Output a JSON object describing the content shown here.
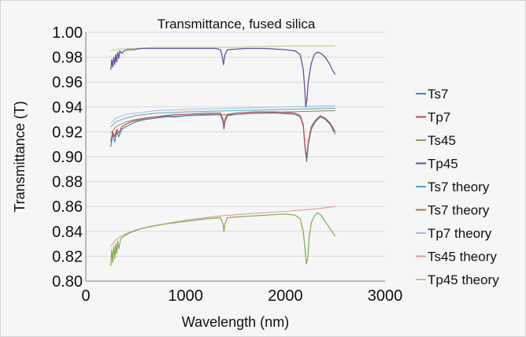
{
  "chart_data": {
    "type": "line",
    "title": "Transmittance, fused silica",
    "xlabel": "Wavelength (nm)",
    "ylabel": "Transmittance (T)",
    "xlim": [
      0,
      3000
    ],
    "ylim": [
      0.8,
      1.0
    ],
    "xticks": [
      "0",
      "1000",
      "2000",
      "3000"
    ],
    "xtick_values": [
      0,
      1000,
      2000,
      3000
    ],
    "yticks": [
      "0.80",
      "0.82",
      "0.84",
      "0.86",
      "0.88",
      "0.90",
      "0.92",
      "0.94",
      "0.96",
      "0.98",
      "1.00"
    ],
    "ytick_values": [
      0.8,
      0.82,
      0.84,
      0.86,
      0.88,
      0.9,
      0.92,
      0.94,
      0.96,
      0.98,
      1.0
    ],
    "grid": "horizontal",
    "legend_position": "right",
    "series": [
      {
        "name": "Ts7",
        "color": "#4a7ebb",
        "width": 1.2,
        "x": [
          250,
          270,
          290,
          310,
          330,
          360,
          400,
          450,
          500,
          600,
          700,
          800,
          900,
          1000,
          1200,
          1350,
          1375,
          1385,
          1395,
          1420,
          1500,
          1700,
          1900,
          2100,
          2150,
          2180,
          2200,
          2215,
          2230,
          2260,
          2300,
          2350,
          2400,
          2450,
          2500
        ],
        "y": [
          0.908,
          0.918,
          0.912,
          0.92,
          0.916,
          0.922,
          0.924,
          0.926,
          0.928,
          0.93,
          0.931,
          0.932,
          0.932,
          0.933,
          0.934,
          0.934,
          0.928,
          0.922,
          0.928,
          0.933,
          0.934,
          0.935,
          0.935,
          0.934,
          0.932,
          0.925,
          0.905,
          0.896,
          0.91,
          0.922,
          0.928,
          0.932,
          0.93,
          0.926,
          0.918
        ]
      },
      {
        "name": "Tp7",
        "color": "#be4b48",
        "width": 1.2,
        "x": [
          250,
          270,
          290,
          310,
          330,
          360,
          400,
          450,
          500,
          600,
          700,
          800,
          900,
          1000,
          1200,
          1350,
          1375,
          1385,
          1395,
          1420,
          1500,
          1700,
          1900,
          2100,
          2150,
          2180,
          2200,
          2215,
          2230,
          2260,
          2300,
          2350,
          2400,
          2450,
          2500
        ],
        "y": [
          0.912,
          0.92,
          0.916,
          0.922,
          0.919,
          0.924,
          0.926,
          0.928,
          0.929,
          0.931,
          0.932,
          0.933,
          0.934,
          0.934,
          0.935,
          0.935,
          0.93,
          0.924,
          0.93,
          0.934,
          0.935,
          0.936,
          0.936,
          0.935,
          0.933,
          0.926,
          0.906,
          0.9,
          0.912,
          0.924,
          0.929,
          0.933,
          0.931,
          0.927,
          0.92
        ]
      },
      {
        "name": "Ts45",
        "color": "#7fa84c",
        "width": 1.2,
        "x": [
          250,
          260,
          270,
          280,
          290,
          300,
          310,
          320,
          330,
          350,
          380,
          420,
          480,
          550,
          650,
          800,
          1000,
          1200,
          1350,
          1375,
          1385,
          1395,
          1420,
          1600,
          1800,
          2000,
          2100,
          2150,
          2180,
          2200,
          2210,
          2225,
          2240,
          2260,
          2290,
          2320,
          2360,
          2400,
          2450,
          2500
        ],
        "y": [
          0.812,
          0.825,
          0.815,
          0.828,
          0.818,
          0.83,
          0.822,
          0.832,
          0.826,
          0.834,
          0.836,
          0.838,
          0.84,
          0.842,
          0.844,
          0.846,
          0.848,
          0.85,
          0.851,
          0.846,
          0.84,
          0.846,
          0.851,
          0.852,
          0.853,
          0.854,
          0.853,
          0.85,
          0.84,
          0.824,
          0.814,
          0.818,
          0.835,
          0.847,
          0.852,
          0.855,
          0.853,
          0.848,
          0.842,
          0.836
        ]
      },
      {
        "name": "Tp45",
        "color": "#6a4f98",
        "width": 1.3,
        "x": [
          250,
          260,
          270,
          280,
          290,
          300,
          310,
          320,
          330,
          340,
          360,
          380,
          420,
          480,
          550,
          700,
          900,
          1100,
          1300,
          1350,
          1370,
          1380,
          1395,
          1420,
          1600,
          1800,
          2000,
          2100,
          2150,
          2180,
          2195,
          2205,
          2215,
          2230,
          2260,
          2290,
          2320,
          2360,
          2400,
          2440,
          2470,
          2500
        ],
        "y": [
          0.97,
          0.978,
          0.972,
          0.98,
          0.974,
          0.982,
          0.976,
          0.984,
          0.979,
          0.985,
          0.983,
          0.985,
          0.986,
          0.986,
          0.987,
          0.987,
          0.987,
          0.987,
          0.987,
          0.986,
          0.98,
          0.974,
          0.982,
          0.986,
          0.987,
          0.987,
          0.986,
          0.985,
          0.982,
          0.97,
          0.955,
          0.94,
          0.945,
          0.96,
          0.975,
          0.982,
          0.984,
          0.983,
          0.98,
          0.975,
          0.97,
          0.966
        ]
      },
      {
        "name": "Ts7 theory",
        "color": "#4aacc6",
        "width": 1.0,
        "x": [
          250,
          300,
          400,
          500,
          700,
          1000,
          1500,
          2000,
          2500
        ],
        "y": [
          0.924,
          0.928,
          0.931,
          0.933,
          0.935,
          0.936,
          0.937,
          0.938,
          0.939
        ]
      },
      {
        "name": "Ts7 theory",
        "color": "#9b7c51",
        "width": 1.0,
        "x": [
          250,
          300,
          400,
          500,
          700,
          1000,
          1500,
          2000,
          2500
        ],
        "y": [
          0.919,
          0.924,
          0.928,
          0.93,
          0.932,
          0.933,
          0.934,
          0.936,
          0.937
        ]
      },
      {
        "name": "Tp7 theory",
        "color": "#9dbde0",
        "width": 1.0,
        "x": [
          250,
          300,
          400,
          500,
          700,
          1000,
          1500,
          2000,
          2500
        ],
        "y": [
          0.927,
          0.931,
          0.934,
          0.935,
          0.937,
          0.938,
          0.939,
          0.94,
          0.941
        ]
      },
      {
        "name": "Ts45 theory",
        "color": "#e39b9b",
        "width": 1.1,
        "x": [
          250,
          300,
          350,
          400,
          500,
          600,
          800,
          1000,
          1300,
          1600,
          2000,
          2300,
          2500
        ],
        "y": [
          0.828,
          0.833,
          0.836,
          0.838,
          0.841,
          0.843,
          0.846,
          0.849,
          0.852,
          0.854,
          0.856,
          0.858,
          0.86
        ]
      },
      {
        "name": "Tp45 theory",
        "color": "#b4cf8e",
        "width": 1.1,
        "x": [
          250,
          300,
          400,
          500,
          700,
          1000,
          1500,
          2000,
          2500
        ],
        "y": [
          0.985,
          0.986,
          0.987,
          0.987,
          0.988,
          0.988,
          0.988,
          0.989,
          0.989
        ]
      }
    ]
  }
}
